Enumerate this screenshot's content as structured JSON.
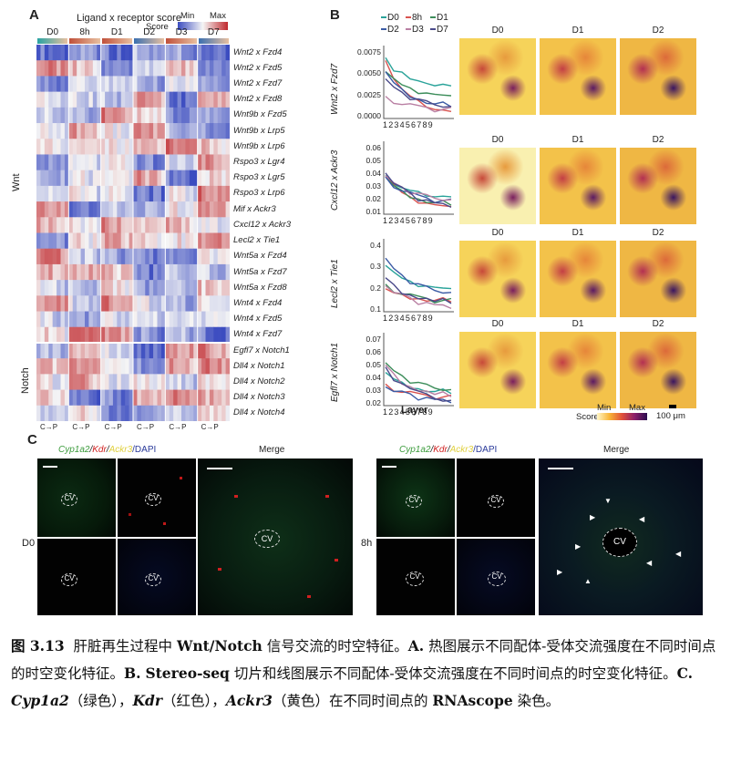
{
  "panelA": {
    "label": "A",
    "title": "Ligand x receptor score",
    "legend_label": "Score",
    "legend_min": "Min",
    "legend_max": "Max",
    "timepoints": [
      "D0",
      "8h",
      "D1",
      "D2",
      "D3",
      "D7"
    ],
    "groups": [
      "Wnt",
      "Notch"
    ],
    "axis_tick": "C→P",
    "rows": [
      "Wnt2 x Fzd4",
      "Wnt2 x Fzd5",
      "Wnt2 x Fzd7",
      "Wnt2 x Fzd8",
      "Wnt9b x Fzd5",
      "Wnt9b x Lrp5",
      "Wnt9b x Lrp6",
      "Rspo3 x Lgr4",
      "Rspo3 x Lgr5",
      "Rspo3 x Lrp6",
      "Mif x Ackr3",
      "Cxcl12 x Ackr3",
      "Lecl2 x Tie1",
      "Wnt5a x Fzd4",
      "Wnt5a x Fzd7",
      "Wnt5a x Fzd8",
      "Wnt4 x Fzd4",
      "Wnt4 x Fzd5",
      "Wnt4 x Fzd7",
      "Egfl7 x Notch1",
      "Dll4 x Notch1",
      "Dll4 x Notch2",
      "Dll4 x Notch3",
      "Dll4 x Notch4"
    ],
    "colors": {
      "low": "#3b4cc0",
      "mid": "#f5f5f5",
      "high": "#c0282d"
    }
  },
  "panelB": {
    "label": "B",
    "legend": [
      "D0",
      "8h",
      "D1",
      "D2",
      "D3",
      "D7"
    ],
    "series_colors": [
      "#2aa39a",
      "#d9534f",
      "#3c8d5a",
      "#3b5ba5",
      "#b97fa3",
      "#4a4a8a"
    ],
    "xlabel": "Layer",
    "xticks": [
      "1",
      "2",
      "3",
      "4",
      "5",
      "6",
      "7",
      "8",
      "9"
    ],
    "map_titles": [
      "D0",
      "D1",
      "D2"
    ],
    "score_label": "Score",
    "score_min": "Min",
    "score_max": "Max",
    "scale_bar": "100 μm",
    "plots": [
      {
        "ylabel": "Wnt2 x Fzd7",
        "yticks": [
          "0.0075",
          "0.0050",
          "0.0025",
          "0.0000"
        ]
      },
      {
        "ylabel": "Cxcl12 x Ackr3",
        "yticks": [
          "0.06",
          "0.05",
          "0.04",
          "0.03",
          "0.02",
          "0.01"
        ]
      },
      {
        "ylabel": "Lecl2 x Tie1",
        "yticks": [
          "0.4",
          "0.3",
          "0.2",
          "0.1"
        ]
      },
      {
        "ylabel": "Egfl7 x Notch1",
        "yticks": [
          "0.07",
          "0.06",
          "0.05",
          "0.04",
          "0.03",
          "0.02"
        ]
      }
    ]
  },
  "panelC": {
    "label": "C",
    "stain_header": [
      "Cyp1a2",
      "/",
      "Kdr",
      "/",
      "Ackr3",
      "/DAPI"
    ],
    "merge": "Merge",
    "rows": [
      "D0",
      "8h"
    ],
    "cv": "CV"
  },
  "caption": {
    "figno": "图 3.13",
    "title1": "肝脏再生过程中 ",
    "title_b": "Wnt/Notch",
    "title2": " 信号交流的时空特征。",
    "a_label": "A.",
    "a_text": " 热图展示不同配体-受体交流强度在不同时间点的时空变化特征。",
    "b_label": "B.",
    "b_b": "Stereo-seq",
    "b_text": " 切片和线图展示不同配体-受体交流强度在不同时间点的时空变化特征。",
    "c_label": "C.",
    "c_g1": "Cyp1a2",
    "c_t1": "（绿色），",
    "c_g2": "Kdr",
    "c_t2": "（红色），",
    "c_g3": "Ackr3",
    "c_t3": "（黄色）在不同时间点的 ",
    "c_b": "RNAscope",
    "c_t4": " 染色。"
  }
}
